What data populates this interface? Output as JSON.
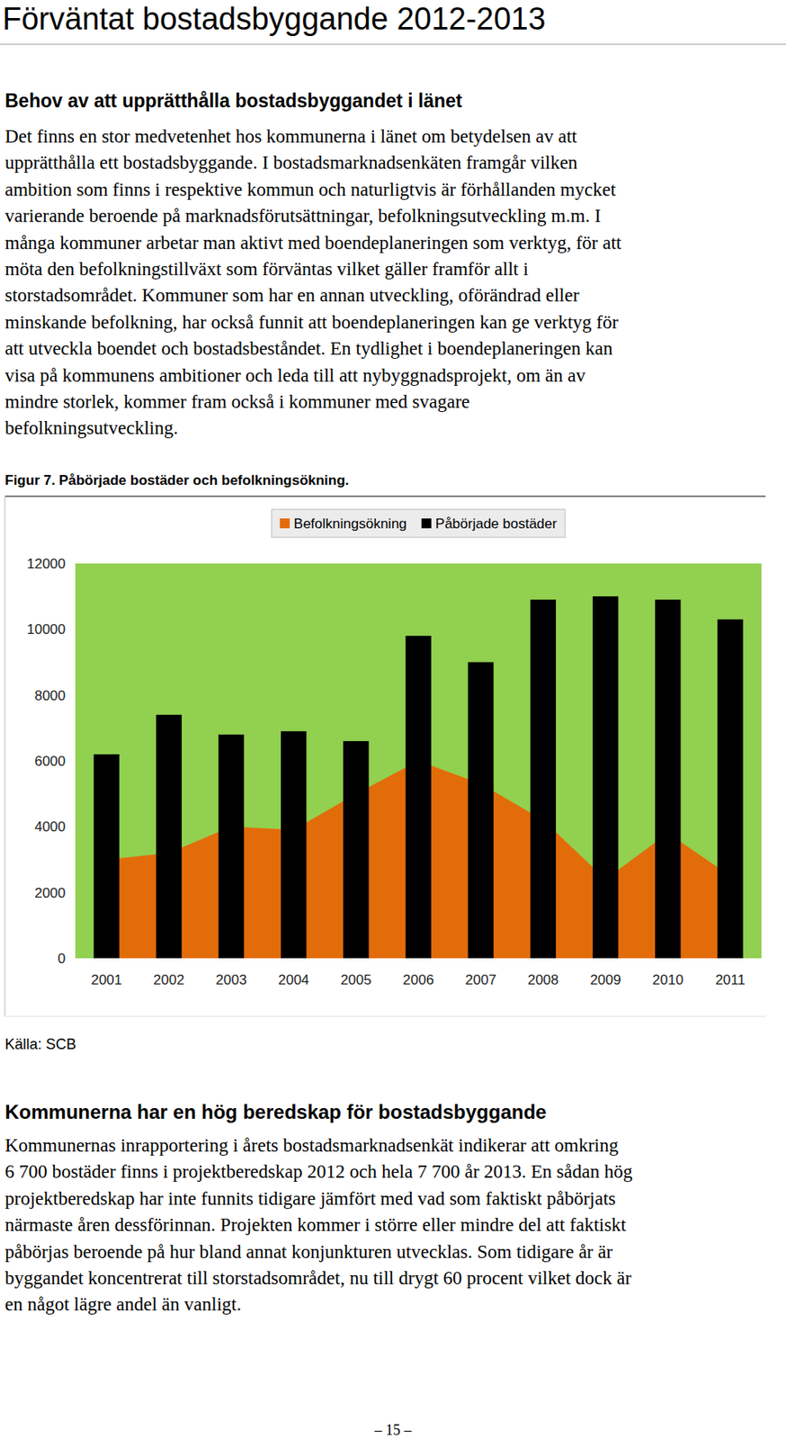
{
  "document": {
    "title": "Förväntat bostadsbyggande 2012-2013",
    "section1": {
      "heading": "Behov av att upprätthålla bostadsbyggandet i länet",
      "lines": [
        "Det finns en stor medvetenhet hos kommunerna i länet om betydelsen av att",
        "upprätthålla ett bostadsbyggande. I bostadsmarknadsenkäten framgår vilken",
        "ambition som finns i respektive kommun och naturligtvis är förhållanden mycket",
        "varierande beroende på marknadsförutsättningar, befolkningsutveckling m.m. I",
        "många kommuner arbetar man aktivt med boendeplaneringen som verktyg, för att",
        "möta den befolkningstillväxt som förväntas vilket gäller framför allt i",
        "storstadsområdet. Kommuner som har en annan utveckling, oförändrad eller",
        "minskande befolkning, har också funnit att boendeplaneringen kan ge verktyg för",
        "att utveckla boendet och bostadsbeståndet. En tydlighet i boendeplaneringen kan",
        "visa på kommunens ambitioner och leda till att nybyggnadsprojekt, om än av",
        "mindre storlek, kommer fram också i kommuner med svagare",
        "befolkningsutveckling."
      ]
    },
    "figure": {
      "caption": "Figur 7. Påbörjade bostäder och befolkningsökning.",
      "source": "Källa: SCB"
    },
    "section2": {
      "heading": "Kommunerna har en hög beredskap för bostadsbyggande",
      "lines": [
        "Kommunernas inrapportering i årets bostadsmarknadsenkät indikerar att omkring",
        "6 700 bostäder finns i projektberedskap 2012 och hela 7 700 år 2013. En sådan hög",
        "projektberedskap har inte funnits tidigare jämfört med vad som faktiskt påbörjats",
        "närmaste åren dessförinnan. Projekten kommer i större eller mindre del att faktiskt",
        "påbörjas beroende på hur bland annat konjunkturen utvecklas. Som tidigare år är",
        "byggandet koncentrerat till storstadsområdet, nu till drygt 60 procent vilket dock är",
        "en något lägre andel än vanligt."
      ]
    },
    "page_number": "– 15 –"
  },
  "chart_data": {
    "type": "bar",
    "categories": [
      "2001",
      "2002",
      "2003",
      "2004",
      "2005",
      "2006",
      "2007",
      "2008",
      "2009",
      "2010",
      "2011"
    ],
    "series": [
      {
        "name": "Befolkningsökning",
        "type": "area",
        "color": "#e36c0a",
        "values": [
          3000,
          3200,
          4000,
          3900,
          5000,
          6000,
          5300,
          4200,
          2400,
          3800,
          2500
        ]
      },
      {
        "name": "Påbörjade bostäder",
        "type": "bar",
        "color": "#000000",
        "values": [
          6200,
          7400,
          6800,
          6900,
          6600,
          9800,
          9000,
          10900,
          11000,
          10900,
          10300
        ]
      }
    ],
    "ylim": [
      0,
      12000
    ],
    "yticks": [
      0,
      2000,
      4000,
      6000,
      8000,
      10000,
      12000
    ],
    "legend": "top",
    "grid": false
  }
}
